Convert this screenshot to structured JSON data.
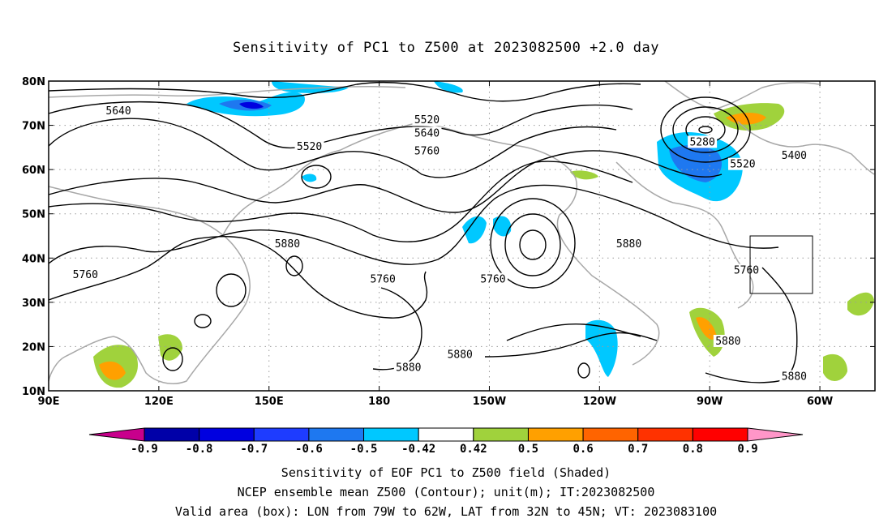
{
  "title": "Sensitivity of PC1 to Z500 at 2023082500 +2.0 day",
  "axes": {
    "lat_labels": [
      "10N",
      "20N",
      "30N",
      "40N",
      "50N",
      "60N",
      "70N",
      "80N"
    ],
    "lon_labels": [
      "90E",
      "120E",
      "150E",
      "180",
      "150W",
      "120W",
      "90W",
      "60W"
    ],
    "lat_values": [
      10,
      20,
      30,
      40,
      50,
      60,
      70,
      80
    ],
    "lon_values": [
      90,
      120,
      150,
      180,
      210,
      240,
      270,
      300
    ],
    "lon_range": [
      90,
      315
    ],
    "lat_range": [
      10,
      80
    ],
    "grid": "dotted"
  },
  "contour_labels": [
    {
      "text": "5640",
      "lon": 109,
      "lat": 73
    },
    {
      "text": "5520",
      "lon": 193,
      "lat": 71
    },
    {
      "text": "5640",
      "lon": 193,
      "lat": 68
    },
    {
      "text": "5760",
      "lon": 193,
      "lat": 64
    },
    {
      "text": "5520",
      "lon": 161,
      "lat": 65
    },
    {
      "text": "5280",
      "lon": 268,
      "lat": 66
    },
    {
      "text": "5520",
      "lon": 279,
      "lat": 61
    },
    {
      "text": "5400",
      "lon": 293,
      "lat": 63
    },
    {
      "text": "5880",
      "lon": 155,
      "lat": 43
    },
    {
      "text": "5880",
      "lon": 248,
      "lat": 43
    },
    {
      "text": "5760",
      "lon": 280,
      "lat": 37
    },
    {
      "text": "5760",
      "lon": 100,
      "lat": 36
    },
    {
      "text": "5760",
      "lon": 181,
      "lat": 35
    },
    {
      "text": "5760",
      "lon": 211,
      "lat": 35
    },
    {
      "text": "5880",
      "lon": 275,
      "lat": 21
    },
    {
      "text": "5880",
      "lon": 202,
      "lat": 18
    },
    {
      "text": "5880",
      "lon": 188,
      "lat": 15
    },
    {
      "text": "5880",
      "lon": 293,
      "lat": 13
    }
  ],
  "valid_box": {
    "lon": [
      281,
      298
    ],
    "lat": [
      32,
      45
    ]
  },
  "colorbar": {
    "labels": [
      "-0.9",
      "-0.8",
      "-0.7",
      "-0.6",
      "-0.5",
      "-0.42",
      "0.42",
      "0.5",
      "0.6",
      "0.7",
      "0.8",
      "0.9"
    ],
    "colors": [
      "#0000a8",
      "#0000e0",
      "#1e3cff",
      "#1e78f0",
      "#00c8ff",
      "#ffffff",
      "#a0d23c",
      "#ffa000",
      "#ff6400",
      "#ff3200",
      "#ff0000"
    ],
    "low_color": "#c8008c",
    "high_color": "#ff96c8"
  },
  "caption": {
    "line1": "Sensitivity of EOF PC1 to Z500 field (Shaded)",
    "line2": "NCEP ensemble mean Z500 (Contour); unit(m); IT:2023082500",
    "line3": "Valid area (box): LON from 79W to 62W, LAT from 32N to 45N; VT: 2023083100"
  }
}
